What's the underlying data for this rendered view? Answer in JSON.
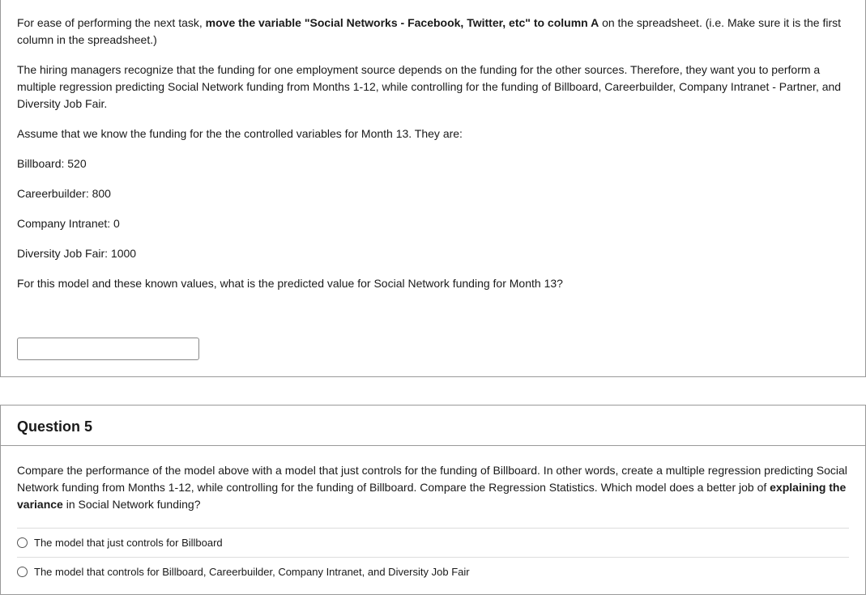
{
  "q4": {
    "para1_pre": "For ease of performing the next task, ",
    "para1_bold": "move the variable \"Social Networks - Facebook, Twitter, etc\" to column A",
    "para1_post": " on the spreadsheet. (i.e. Make sure it is the first column in the spreadsheet.)",
    "para2": "The hiring managers recognize that the funding for one employment source depends on the funding for the other sources. Therefore, they want you to perform a multiple regression predicting Social Network funding from Months 1-12, while controlling for the funding of Billboard, Careerbuilder, Company Intranet - Partner, and Diversity Job Fair.",
    "para3": "Assume that we know the funding for the the controlled variables for Month 13. They are:",
    "vals": {
      "billboard": "Billboard: 520",
      "careerbuilder": "Careerbuilder: 800",
      "intranet": "Company Intranet: 0",
      "diversity": "Diversity Job Fair: 1000"
    },
    "para4": "For this model and these known values, what is the predicted value for Social Network funding for Month 13?",
    "input_value": ""
  },
  "q5": {
    "header": "Question 5",
    "para_pre": "Compare the performance of the model above with a model that just controls for the funding of Billboard. In other words, create a multiple regression predicting Social Network funding from Months 1-12, while controlling for the funding of Billboard. Compare the Regression Statistics. Which model does a better job of ",
    "para_bold": "explaining the variance",
    "para_post": " in Social Network funding?",
    "options": [
      "The model that just controls for Billboard",
      "The model that controls for Billboard, Careerbuilder, Company Intranet, and Diversity Job Fair"
    ]
  }
}
